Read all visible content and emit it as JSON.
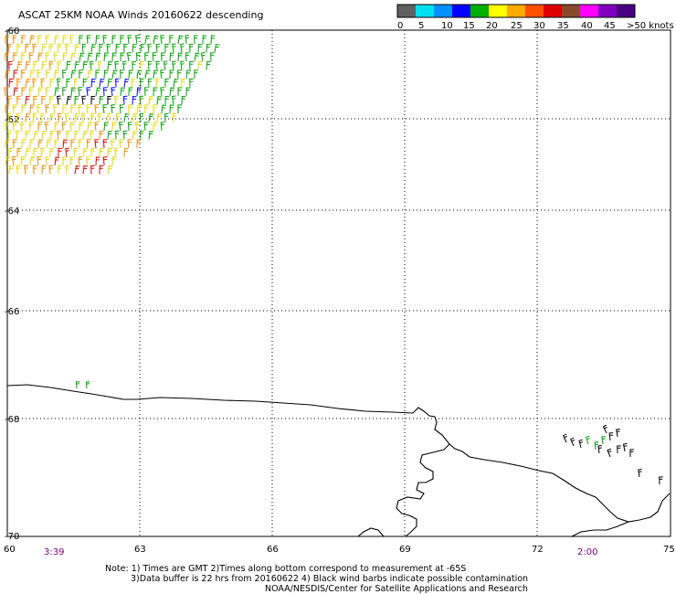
{
  "title": "ASCAT 25KM NOAA Winds 20160622 descending",
  "colorbar": {
    "labels": [
      "0",
      "5",
      "10",
      "15",
      "20",
      "25",
      "30",
      "35",
      "40",
      "45",
      ">50 knots"
    ],
    "colors": [
      "#606060",
      "#00e0f0",
      "#0090ff",
      "#0000ff",
      "#00b000",
      "#ffff00",
      "#ffaa00",
      "#ff5000",
      "#e00000",
      "#8a4a2a",
      "#ff00ff",
      "#8000c0",
      "#4b0082"
    ]
  },
  "lat_labels": [
    "-60",
    "-62",
    "-64",
    "-66",
    "-68",
    "-70"
  ],
  "lon_labels": [
    "60",
    "63",
    "66",
    "69",
    "72",
    "75"
  ],
  "times": [
    "3:39",
    "2:00"
  ],
  "notes": [
    "Note: 1) Times are GMT 2)Times along bottom correspond to measurement at -65S",
    "3)Data buffer is 22 hrs from 20160622 4) Black wind barbs indicate possible contamination",
    "NOAA/NESDIS/Center for Satellite Applications and Research"
  ],
  "colors": {
    "time_label": "#800080",
    "barb_yellow": "#e6d800",
    "barb_orange": "#f08a00",
    "barb_red": "#e00000",
    "barb_green": "#00a000",
    "barb_blue": "#0000ff",
    "barb_black": "#000000"
  }
}
